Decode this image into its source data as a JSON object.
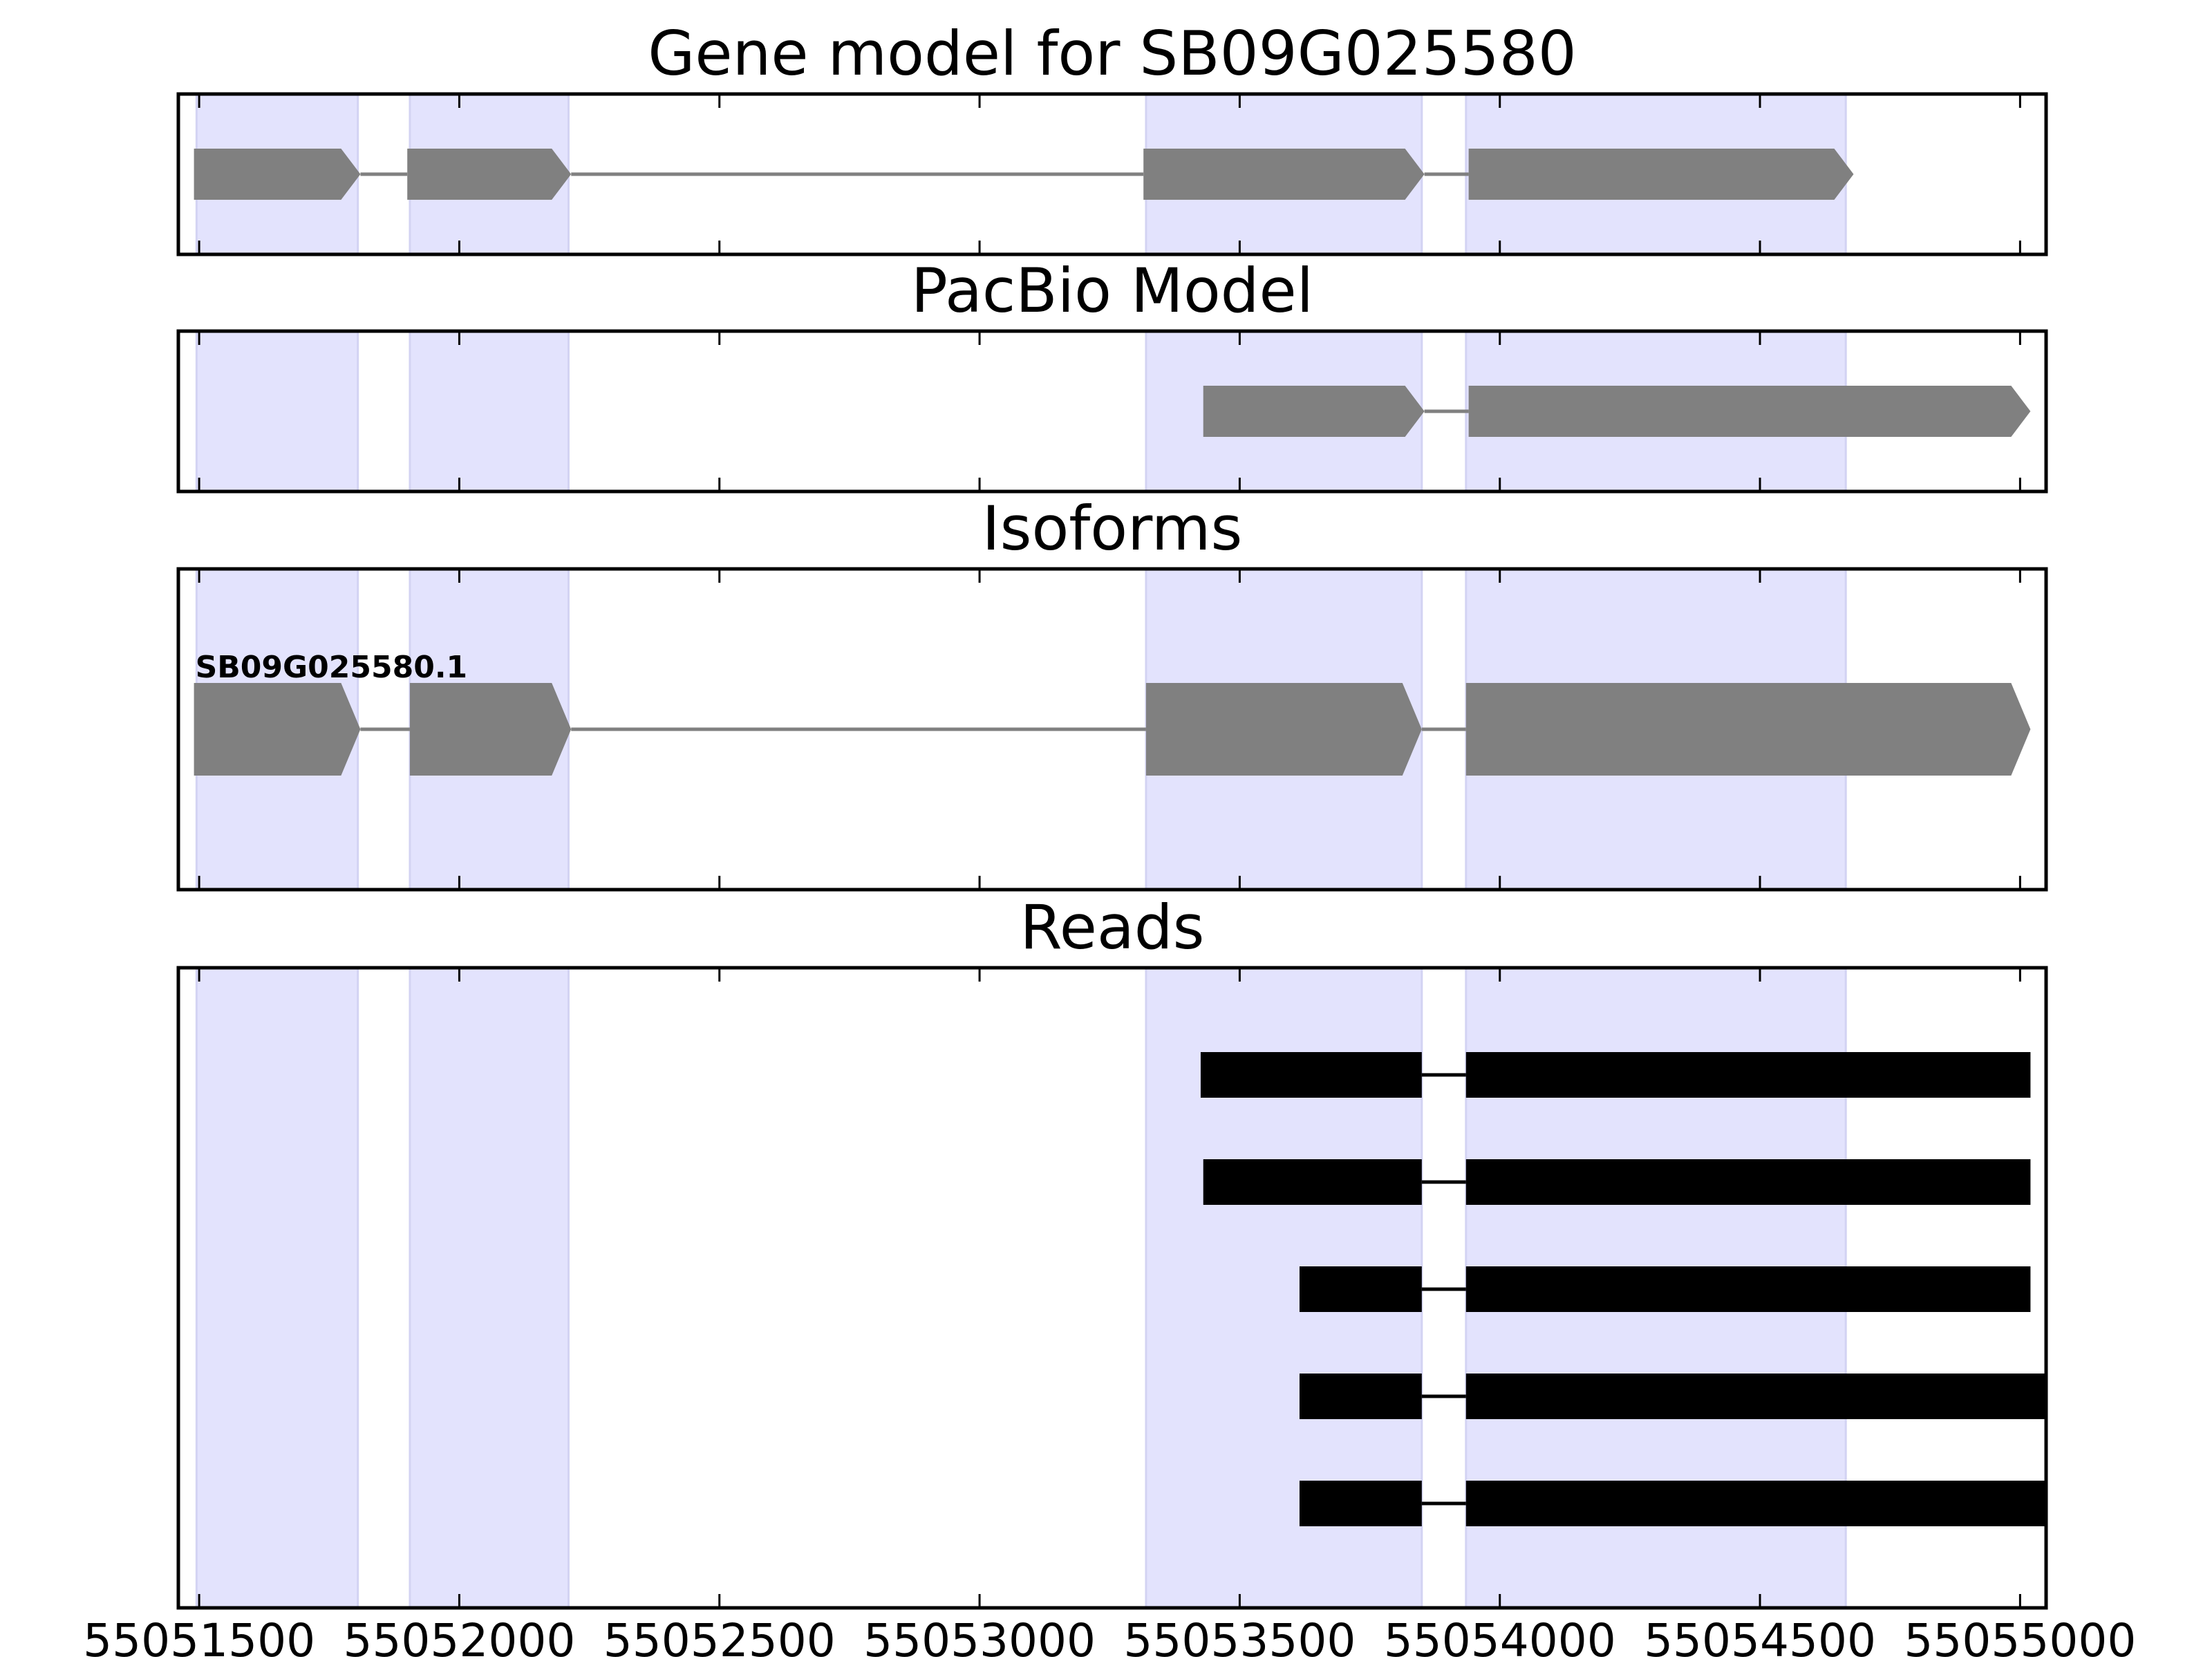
{
  "chart_data": {
    "type": "gene_model_tracks",
    "x_range": [
      55051460,
      55055050
    ],
    "x_ticks": [
      55051500,
      55052000,
      55052500,
      55053000,
      55053500,
      55054000,
      55054500,
      55055000
    ],
    "exon_highlights": [
      [
        55051495,
        55051805
      ],
      [
        55051905,
        55052210
      ],
      [
        55053320,
        55053850
      ],
      [
        55053935,
        55054665
      ]
    ],
    "colors": {
      "highlight": "#e3e3fd",
      "highlight_edge": "#d3d3f3",
      "model": "#808080",
      "read": "#000000",
      "frame": "#000000"
    },
    "panels": [
      {
        "title": "Gene model for SB09G025580",
        "kind": "model",
        "tracks": [
          {
            "label": "",
            "exons": [
              [
                55051490,
                55051810
              ],
              [
                55051900,
                55052215
              ],
              [
                55053315,
                55053855
              ],
              [
                55053940,
                55054680
              ]
            ]
          }
        ]
      },
      {
        "title": "PacBio Model",
        "kind": "model",
        "tracks": [
          {
            "label": "",
            "exons": [
              [
                55053430,
                55053855
              ],
              [
                55053940,
                55055020
              ]
            ]
          }
        ]
      },
      {
        "title": "Isoforms",
        "kind": "model",
        "tracks": [
          {
            "label": "SB09G025580.1",
            "exons": [
              [
                55051490,
                55051810
              ],
              [
                55051905,
                55052215
              ],
              [
                55053320,
                55053850
              ],
              [
                55053935,
                55055020
              ]
            ]
          }
        ]
      },
      {
        "title": "Reads",
        "kind": "reads",
        "tracks": [
          {
            "label": "",
            "exons": [
              [
                55053425,
                55053850
              ],
              [
                55053935,
                55055020
              ]
            ]
          },
          {
            "label": "",
            "exons": [
              [
                55053430,
                55053850
              ],
              [
                55053935,
                55055020
              ]
            ]
          },
          {
            "label": "",
            "exons": [
              [
                55053615,
                55053850
              ],
              [
                55053935,
                55055020
              ]
            ]
          },
          {
            "label": "",
            "exons": [
              [
                55053615,
                55053850
              ],
              [
                55053935,
                55055050
              ]
            ]
          },
          {
            "label": "",
            "exons": [
              [
                55053615,
                55053850
              ],
              [
                55053935,
                55055050
              ]
            ]
          }
        ]
      }
    ]
  }
}
